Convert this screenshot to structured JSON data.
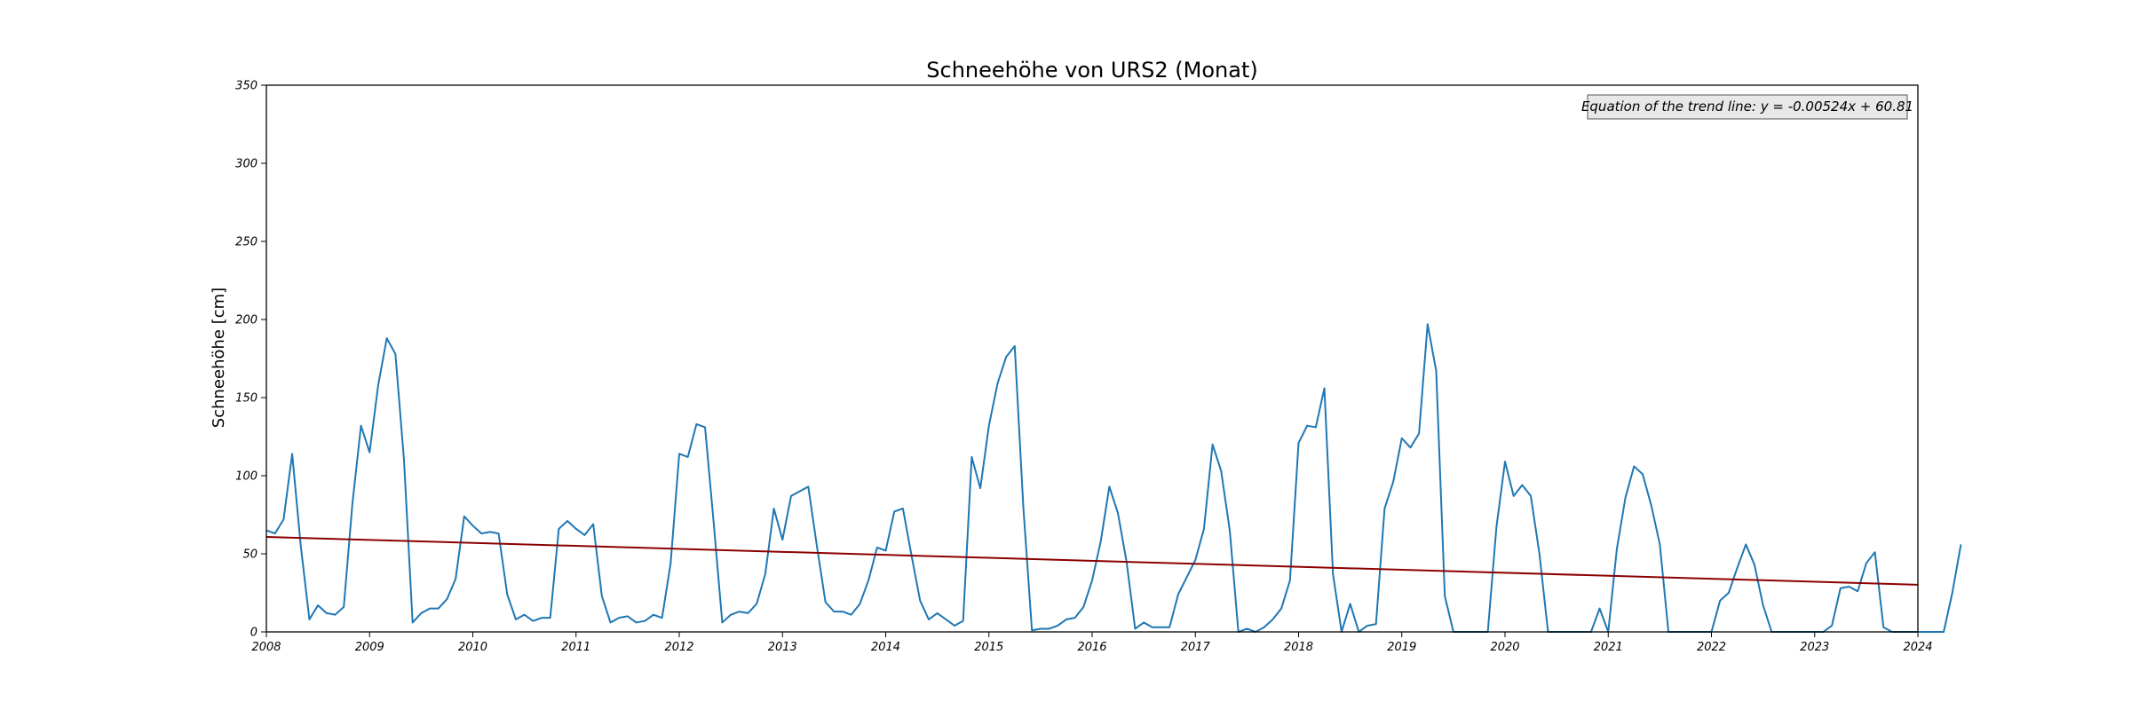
{
  "chart_data": {
    "type": "line",
    "title": "Schneehöhe von URS2 (Monat)",
    "xlabel": "",
    "ylabel": "Schneehöhe [cm]",
    "xlim": [
      2008,
      2024
    ],
    "ylim": [
      0,
      350
    ],
    "x_ticks": [
      2008,
      2009,
      2010,
      2011,
      2012,
      2013,
      2014,
      2015,
      2016,
      2017,
      2018,
      2019,
      2020,
      2021,
      2022,
      2023,
      2024
    ],
    "y_ticks": [
      0,
      50,
      100,
      150,
      200,
      250,
      300,
      350
    ],
    "grid": false,
    "series": [
      {
        "color": "#1f77b4",
        "start_date": "2008-01",
        "frequency": "monthly",
        "values": [
          65,
          63,
          72,
          114,
          55,
          8,
          17,
          12,
          11,
          16,
          82,
          132,
          115,
          158,
          188,
          178,
          110,
          6,
          12,
          15,
          15,
          21,
          34,
          74,
          68,
          63,
          64,
          63,
          24,
          8,
          11,
          7,
          9,
          9,
          66,
          71,
          66,
          62,
          69,
          23,
          6,
          9,
          10,
          6,
          7,
          11,
          9,
          44,
          114,
          112,
          133,
          131,
          70,
          6,
          11,
          13,
          12,
          18,
          37,
          79,
          59,
          87,
          90,
          93,
          55,
          19,
          13,
          13,
          11,
          18,
          33,
          54,
          52,
          77,
          79,
          49,
          20,
          8,
          12,
          8,
          4,
          7,
          112,
          92,
          132,
          159,
          176,
          183,
          80,
          1,
          2,
          2,
          4,
          8,
          9,
          16,
          33,
          58,
          93,
          76,
          45,
          2,
          6,
          3,
          3,
          3,
          24,
          35,
          46,
          66,
          120,
          103,
          65,
          0,
          2,
          0,
          3,
          8,
          15,
          33,
          121,
          132,
          131,
          156,
          37,
          0,
          18,
          0,
          4,
          5,
          79,
          96,
          124,
          118,
          127,
          197,
          167,
          23,
          0,
          0,
          0,
          0,
          0,
          67,
          109,
          87,
          94,
          87,
          50,
          0,
          0,
          0,
          0,
          0,
          0,
          15,
          0,
          53,
          86,
          106,
          101,
          81,
          56,
          0,
          0,
          0,
          0,
          0,
          0,
          20,
          25,
          41,
          56,
          43,
          17,
          0,
          0,
          0,
          0,
          0,
          0,
          0,
          4,
          28,
          29,
          26,
          44,
          51,
          3,
          0,
          0,
          0,
          0,
          0,
          0,
          0,
          25,
          56
        ]
      },
      {
        "color": "#8b0000",
        "x": [
          2008,
          2024
        ],
        "values": [
          60.81,
          30.2
        ]
      }
    ],
    "annotations": [
      {
        "text": "Equation of the trend line: y = -0.00524x + 60.81",
        "position": "top-right"
      }
    ]
  }
}
